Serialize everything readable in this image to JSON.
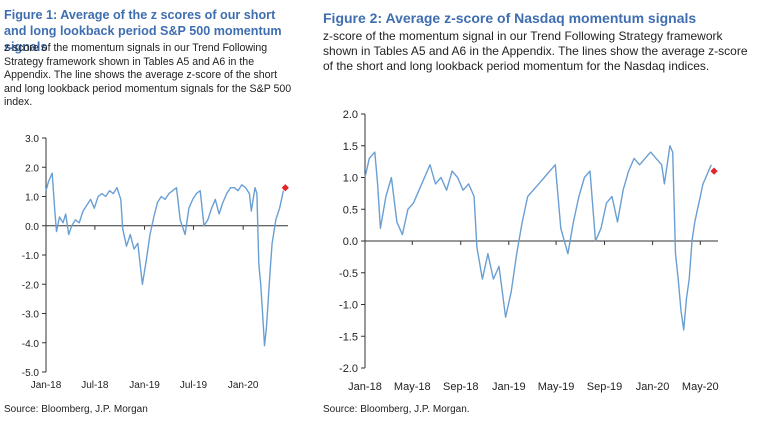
{
  "figures": [
    {
      "title": "Figure 1: Average of the z scores of our short and long lookback period S&P 500 momentum signals",
      "description": "z-score of the momentum signals in our Trend Following Strategy framework shown in Tables A5 and A6 in the Appendix. The line shows the average z-score of the short and long lookback period momentum signals for the S&P 500 index.",
      "source": "Source: Bloomberg, J.P. Morgan"
    },
    {
      "title": "Figure 2: Average z-score of Nasdaq momentum signals",
      "description": "z-score of the momentum signal in our Trend Following Strategy framework shown in Tables A5 and A6 in the Appendix. The lines show the average z-score of the short and long lookback period momentum for the Nasdaq indices.",
      "source": "Source: Bloomberg, J.P. Morgan."
    }
  ],
  "chart_data": [
    {
      "type": "line",
      "title": "Figure 1: Average of the z scores of our short and long lookback period S&P 500 momentum signals",
      "xlabel": "",
      "ylabel": "",
      "x_range": [
        "2018-01-01",
        "2020-06-15"
      ],
      "ylim": [
        -5.0,
        3.0
      ],
      "yticks": [
        "3.0",
        "2.0",
        "1.0",
        "0.0",
        "-1.0",
        "-2.0",
        "-3.0",
        "-4.0",
        "-5.0"
      ],
      "xticks": [
        {
          "label": "Jan-18",
          "date": "2018-01-01"
        },
        {
          "label": "Jul-18",
          "date": "2018-07-01"
        },
        {
          "label": "Jan-19",
          "date": "2019-01-01"
        },
        {
          "label": "Jul-19",
          "date": "2019-07-01"
        },
        {
          "label": "Jan-20",
          "date": "2020-01-01"
        }
      ],
      "grid": false,
      "line_color": "#6a9fd4",
      "marker_color": "#e0262b",
      "series": [
        {
          "points": [
            [
              "2018-01-01",
              1.2
            ],
            [
              "2018-01-10",
              1.5
            ],
            [
              "2018-01-24",
              1.8
            ],
            [
              "2018-02-02",
              0.6
            ],
            [
              "2018-02-09",
              -0.2
            ],
            [
              "2018-02-20",
              0.3
            ],
            [
              "2018-03-05",
              0.1
            ],
            [
              "2018-03-15",
              0.4
            ],
            [
              "2018-03-26",
              -0.3
            ],
            [
              "2018-04-06",
              0.0
            ],
            [
              "2018-04-20",
              0.2
            ],
            [
              "2018-05-04",
              0.1
            ],
            [
              "2018-05-18",
              0.5
            ],
            [
              "2018-06-01",
              0.7
            ],
            [
              "2018-06-15",
              0.9
            ],
            [
              "2018-06-29",
              0.6
            ],
            [
              "2018-07-13",
              1.0
            ],
            [
              "2018-07-27",
              1.1
            ],
            [
              "2018-08-10",
              1.0
            ],
            [
              "2018-08-24",
              1.2
            ],
            [
              "2018-09-07",
              1.1
            ],
            [
              "2018-09-21",
              1.3
            ],
            [
              "2018-10-05",
              0.9
            ],
            [
              "2018-10-12",
              -0.1
            ],
            [
              "2018-10-26",
              -0.7
            ],
            [
              "2018-11-09",
              -0.3
            ],
            [
              "2018-11-23",
              -0.8
            ],
            [
              "2018-12-07",
              -0.6
            ],
            [
              "2018-12-24",
              -2.0
            ],
            [
              "2019-01-07",
              -1.2
            ],
            [
              "2019-01-21",
              -0.3
            ],
            [
              "2019-02-04",
              0.3
            ],
            [
              "2019-02-18",
              0.8
            ],
            [
              "2019-03-04",
              1.0
            ],
            [
              "2019-03-18",
              0.9
            ],
            [
              "2019-04-01",
              1.1
            ],
            [
              "2019-04-15",
              1.2
            ],
            [
              "2019-04-29",
              1.3
            ],
            [
              "2019-05-13",
              0.2
            ],
            [
              "2019-05-31",
              -0.3
            ],
            [
              "2019-06-14",
              0.6
            ],
            [
              "2019-06-28",
              0.9
            ],
            [
              "2019-07-12",
              1.1
            ],
            [
              "2019-07-26",
              1.2
            ],
            [
              "2019-08-09",
              0.0
            ],
            [
              "2019-08-23",
              0.2
            ],
            [
              "2019-09-06",
              0.6
            ],
            [
              "2019-09-20",
              0.9
            ],
            [
              "2019-10-04",
              0.4
            ],
            [
              "2019-10-18",
              0.8
            ],
            [
              "2019-11-01",
              1.1
            ],
            [
              "2019-11-15",
              1.3
            ],
            [
              "2019-11-29",
              1.3
            ],
            [
              "2019-12-13",
              1.2
            ],
            [
              "2019-12-27",
              1.4
            ],
            [
              "2020-01-10",
              1.3
            ],
            [
              "2020-01-24",
              1.1
            ],
            [
              "2020-01-31",
              0.5
            ],
            [
              "2020-02-14",
              1.3
            ],
            [
              "2020-02-21",
              1.1
            ],
            [
              "2020-02-28",
              -1.3
            ],
            [
              "2020-03-06",
              -2.0
            ],
            [
              "2020-03-13",
              -3.0
            ],
            [
              "2020-03-20",
              -4.1
            ],
            [
              "2020-03-27",
              -3.5
            ],
            [
              "2020-04-03",
              -2.5
            ],
            [
              "2020-04-10",
              -1.5
            ],
            [
              "2020-04-17",
              -0.6
            ],
            [
              "2020-04-24",
              -0.2
            ],
            [
              "2020-05-01",
              0.2
            ],
            [
              "2020-05-08",
              0.4
            ],
            [
              "2020-05-15",
              0.6
            ],
            [
              "2020-05-22",
              0.9
            ],
            [
              "2020-05-29",
              1.2
            ]
          ]
        }
      ],
      "last_point": [
        "2020-06-05",
        1.3
      ]
    },
    {
      "type": "line",
      "title": "Figure 2: Average z-score of Nasdaq momentum signals",
      "xlabel": "",
      "ylabel": "",
      "x_range": [
        "2018-01-01",
        "2020-06-15"
      ],
      "ylim": [
        -2.0,
        2.0
      ],
      "yticks": [
        "2.0",
        "1.5",
        "1.0",
        "0.5",
        "0.0",
        "-0.5",
        "-1.0",
        "-1.5",
        "-2.0"
      ],
      "xticks": [
        {
          "label": "Jan-18",
          "date": "2018-01-01"
        },
        {
          "label": "May-18",
          "date": "2018-05-01"
        },
        {
          "label": "Sep-18",
          "date": "2018-09-01"
        },
        {
          "label": "Jan-19",
          "date": "2019-01-01"
        },
        {
          "label": "May-19",
          "date": "2019-05-01"
        },
        {
          "label": "Sep-19",
          "date": "2019-09-01"
        },
        {
          "label": "Jan-20",
          "date": "2020-01-01"
        },
        {
          "label": "May-20",
          "date": "2020-05-01"
        }
      ],
      "grid": false,
      "line_color": "#6a9fd4",
      "marker_color": "#e0262b",
      "series": [
        {
          "points": [
            [
              "2018-01-01",
              1.0
            ],
            [
              "2018-01-12",
              1.3
            ],
            [
              "2018-01-26",
              1.4
            ],
            [
              "2018-02-02",
              0.9
            ],
            [
              "2018-02-09",
              0.2
            ],
            [
              "2018-02-23",
              0.7
            ],
            [
              "2018-03-09",
              1.0
            ],
            [
              "2018-03-23",
              0.3
            ],
            [
              "2018-04-06",
              0.1
            ],
            [
              "2018-04-20",
              0.5
            ],
            [
              "2018-05-04",
              0.6
            ],
            [
              "2018-05-18",
              0.8
            ],
            [
              "2018-06-01",
              1.0
            ],
            [
              "2018-06-15",
              1.2
            ],
            [
              "2018-06-29",
              0.9
            ],
            [
              "2018-07-13",
              1.0
            ],
            [
              "2018-07-27",
              0.8
            ],
            [
              "2018-08-10",
              1.1
            ],
            [
              "2018-08-24",
              1.0
            ],
            [
              "2018-09-07",
              0.8
            ],
            [
              "2018-09-21",
              0.9
            ],
            [
              "2018-10-05",
              0.7
            ],
            [
              "2018-10-12",
              -0.1
            ],
            [
              "2018-10-26",
              -0.6
            ],
            [
              "2018-11-09",
              -0.2
            ],
            [
              "2018-11-23",
              -0.6
            ],
            [
              "2018-12-07",
              -0.4
            ],
            [
              "2018-12-24",
              -1.2
            ],
            [
              "2019-01-07",
              -0.8
            ],
            [
              "2019-01-21",
              -0.2
            ],
            [
              "2019-02-04",
              0.3
            ],
            [
              "2019-02-18",
              0.7
            ],
            [
              "2019-03-04",
              0.8
            ],
            [
              "2019-03-18",
              0.9
            ],
            [
              "2019-04-01",
              1.0
            ],
            [
              "2019-04-15",
              1.1
            ],
            [
              "2019-04-29",
              1.2
            ],
            [
              "2019-05-13",
              0.2
            ],
            [
              "2019-05-31",
              -0.2
            ],
            [
              "2019-06-14",
              0.3
            ],
            [
              "2019-06-28",
              0.7
            ],
            [
              "2019-07-12",
              1.0
            ],
            [
              "2019-07-26",
              1.1
            ],
            [
              "2019-08-09",
              0.0
            ],
            [
              "2019-08-23",
              0.2
            ],
            [
              "2019-09-06",
              0.6
            ],
            [
              "2019-09-20",
              0.7
            ],
            [
              "2019-10-04",
              0.3
            ],
            [
              "2019-10-18",
              0.8
            ],
            [
              "2019-11-01",
              1.1
            ],
            [
              "2019-11-15",
              1.3
            ],
            [
              "2019-11-29",
              1.2
            ],
            [
              "2019-12-13",
              1.3
            ],
            [
              "2019-12-27",
              1.4
            ],
            [
              "2020-01-10",
              1.3
            ],
            [
              "2020-01-24",
              1.2
            ],
            [
              "2020-01-31",
              0.9
            ],
            [
              "2020-02-14",
              1.5
            ],
            [
              "2020-02-21",
              1.4
            ],
            [
              "2020-02-28",
              -0.2
            ],
            [
              "2020-03-06",
              -0.6
            ],
            [
              "2020-03-13",
              -1.1
            ],
            [
              "2020-03-20",
              -1.4
            ],
            [
              "2020-03-27",
              -0.9
            ],
            [
              "2020-04-03",
              -0.6
            ],
            [
              "2020-04-10",
              0.0
            ],
            [
              "2020-04-17",
              0.3
            ],
            [
              "2020-04-24",
              0.5
            ],
            [
              "2020-05-01",
              0.7
            ],
            [
              "2020-05-08",
              0.9
            ],
            [
              "2020-05-15",
              1.0
            ],
            [
              "2020-05-22",
              1.1
            ],
            [
              "2020-05-29",
              1.2
            ]
          ]
        }
      ],
      "last_point": [
        "2020-06-05",
        1.1
      ]
    }
  ]
}
